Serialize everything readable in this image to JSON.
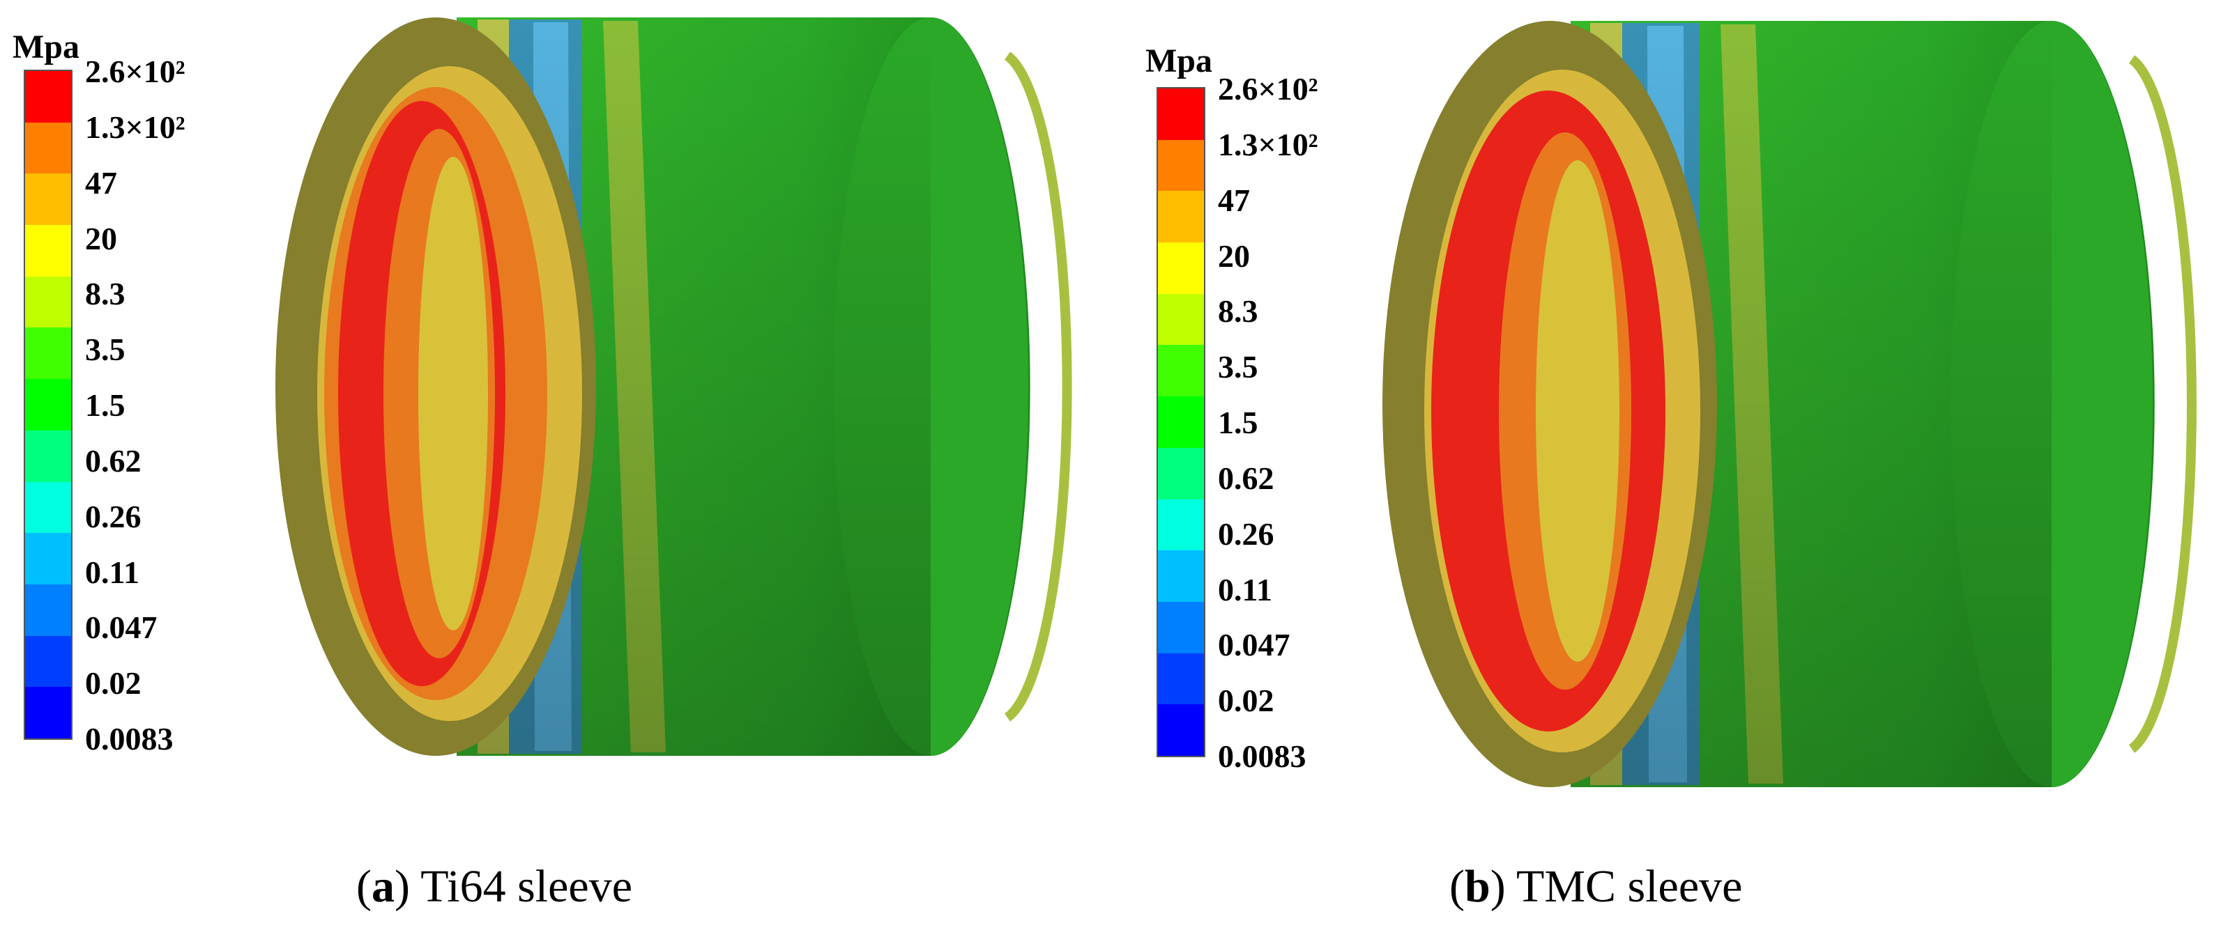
{
  "legend": {
    "unit": "Mpa",
    "labels": [
      "2.6×10²",
      "1.3×10²",
      "47",
      "20",
      "8.3",
      "3.5",
      "1.5",
      "0.62",
      "0.26",
      "0.11",
      "0.047",
      "0.02",
      "0.0083"
    ],
    "colors": [
      "#ff0000",
      "#ff7f00",
      "#ffbf00",
      "#ffff00",
      "#bfff00",
      "#3fff00",
      "#00ff00",
      "#00ff7f",
      "#00ffdf",
      "#00bfff",
      "#007fff",
      "#003fff",
      "#0000ff"
    ]
  },
  "panels": [
    {
      "letter": "a",
      "caption": "Ti64 sleeve"
    },
    {
      "letter": "b",
      "caption": "TMC sleeve"
    }
  ],
  "surface_colors": {
    "red": "#e8231a",
    "orange": "#e8731e",
    "yellow": "#d8c23a",
    "olive": "#8a8a2e",
    "green": "#2fb52a",
    "dark_green": "#1f7d1a",
    "blue": "#2a7ad8",
    "light_blue": "#4ab0e0"
  }
}
